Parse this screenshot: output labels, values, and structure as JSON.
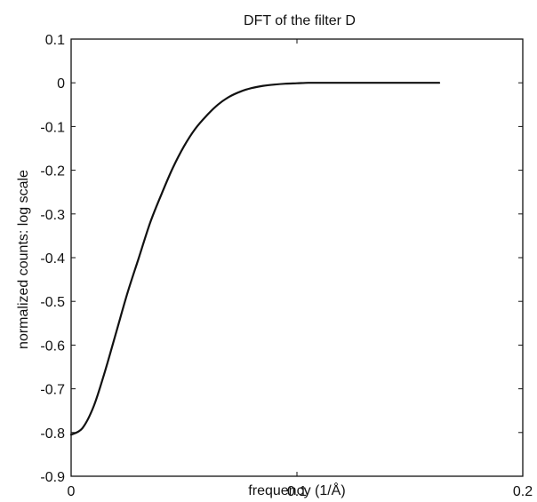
{
  "chart_data": {
    "type": "line",
    "title": "DFT of the filter D",
    "xlabel": "frequency (1/Å)",
    "ylabel": "normalized counts: log scale",
    "xlim": [
      0,
      0.2
    ],
    "ylim": [
      -0.9,
      0.1
    ],
    "xticks": [
      0,
      0.1,
      0.2
    ],
    "xtick_labels": [
      "0",
      "0.1",
      "0.2"
    ],
    "yticks": [
      0.1,
      0,
      -0.1,
      -0.2,
      -0.3,
      -0.4,
      -0.5,
      -0.6,
      -0.7,
      -0.8,
      -0.9
    ],
    "ytick_labels": [
      "0.1",
      "0",
      "-0.1",
      "-0.2",
      "-0.3",
      "-0.4",
      "-0.5",
      "-0.6",
      "-0.7",
      "-0.8",
      "-0.9"
    ],
    "grid": false,
    "line_color": "#111111",
    "series": [
      {
        "x": [
          0,
          0.005,
          0.01,
          0.015,
          0.02,
          0.025,
          0.03,
          0.035,
          0.04,
          0.045,
          0.05,
          0.055,
          0.06,
          0.065,
          0.07,
          0.075,
          0.08,
          0.085,
          0.09,
          0.095,
          0.1,
          0.105,
          0.11,
          0.115,
          0.12,
          0.13,
          0.14,
          0.15,
          0.163
        ],
        "y": [
          -0.805,
          -0.79,
          -0.74,
          -0.66,
          -0.57,
          -0.48,
          -0.4,
          -0.32,
          -0.255,
          -0.195,
          -0.145,
          -0.105,
          -0.075,
          -0.05,
          -0.032,
          -0.02,
          -0.012,
          -0.007,
          -0.004,
          -0.002,
          -0.001,
          0,
          0,
          0,
          0,
          0,
          0,
          0,
          0
        ]
      }
    ]
  }
}
